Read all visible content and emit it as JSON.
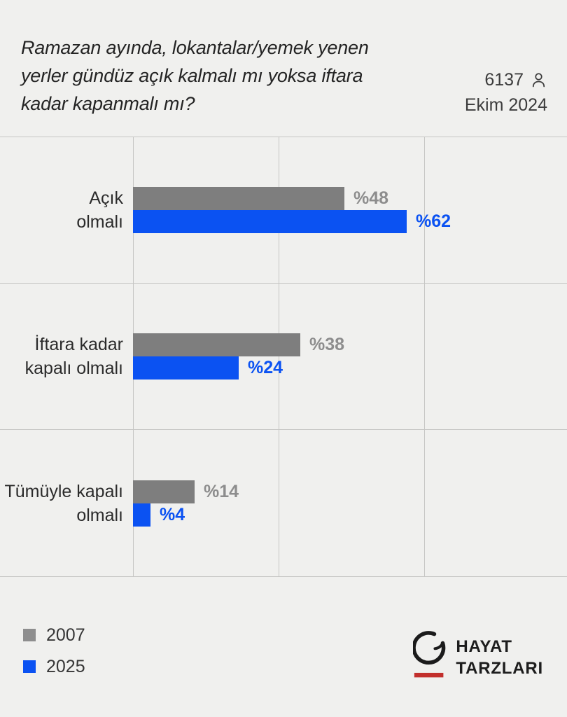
{
  "header": {
    "title_lines": [
      "Ramazan ayında, lokantalar/yemek yenen",
      "yerler gündüz açık kalmalı mı yoksa iftara",
      "kadar kapanmalı mı?"
    ],
    "sample_size": "6137",
    "date": "Ekim 2024",
    "icons": {
      "sample": "person-icon"
    }
  },
  "chart_data": {
    "type": "bar",
    "orientation": "horizontal",
    "title": "Ramazan ayında, lokantalar/yemek yenen yerler gündüz açık kalmalı mı yoksa iftara kadar kapanmalı mı?",
    "categories": [
      "Açık olmalı",
      "İftara kadar kapalı olmalı",
      "Tümüyle kapalı olmalı"
    ],
    "category_lines": [
      [
        "Açık",
        "olmalı"
      ],
      [
        "İftara kadar",
        "kapalı olmalı"
      ],
      [
        "Tümüyle kapalı",
        "olmalı"
      ]
    ],
    "series": [
      {
        "name": "2007",
        "color": "#7e7e7e",
        "label_color": "#8d8d8d",
        "values": [
          48,
          38,
          14
        ],
        "value_labels": [
          "%48",
          "%38",
          "%14"
        ]
      },
      {
        "name": "2025",
        "color": "#0b52f2",
        "label_color": "#0b52f2",
        "values": [
          62,
          24,
          4
        ],
        "value_labels": [
          "%62",
          "%24",
          "%4"
        ]
      }
    ],
    "xlim": [
      0,
      100
    ],
    "grid": true,
    "legend_position": "bottom-left",
    "background_color": "#f0f0ee",
    "gridline_color": "#c6c6c4"
  },
  "legend": {
    "items": [
      {
        "label": "2007",
        "color": "#8e8e8e"
      },
      {
        "label": "2025",
        "color": "#0b52f2"
      }
    ]
  },
  "branding": {
    "name_line1": "HAYAT",
    "name_line2": "TARZLARI",
    "mark": "swirl-circle-logo",
    "accent_color": "#c22f2c"
  }
}
